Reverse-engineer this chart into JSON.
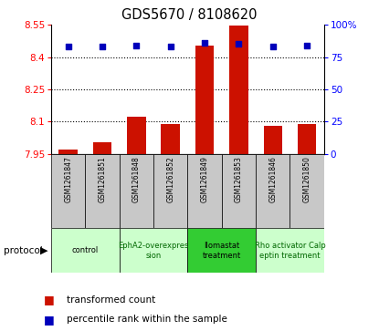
{
  "title": "GDS5670 / 8108620",
  "samples": [
    "GSM1261847",
    "GSM1261851",
    "GSM1261848",
    "GSM1261852",
    "GSM1261849",
    "GSM1261853",
    "GSM1261846",
    "GSM1261850"
  ],
  "transformed_count": [
    7.972,
    8.005,
    8.125,
    8.088,
    8.455,
    8.545,
    8.082,
    8.088
  ],
  "percentile_rank": [
    83,
    83,
    84,
    83,
    86,
    85,
    83,
    84
  ],
  "ylim_left": [
    7.95,
    8.55
  ],
  "ylim_right": [
    0,
    100
  ],
  "yticks_left": [
    7.95,
    8.1,
    8.25,
    8.4,
    8.55
  ],
  "ytick_labels_left": [
    "7.95",
    "8.1",
    "8.25",
    "8.4",
    "8.55"
  ],
  "yticks_right": [
    0,
    25,
    50,
    75,
    100
  ],
  "ytick_labels_right": [
    "0",
    "25",
    "50",
    "75",
    "100%"
  ],
  "bar_color": "#cc1100",
  "dot_color": "#0000bb",
  "bar_bottom": 7.95,
  "protocols": [
    {
      "label": "control",
      "start": 0,
      "end": 2,
      "color": "#ccffcc",
      "text_color": "#000000"
    },
    {
      "label": "EphA2-overexpres\nsion",
      "start": 2,
      "end": 4,
      "color": "#ccffcc",
      "text_color": "#006600"
    },
    {
      "label": "Ilomastat\ntreatment",
      "start": 4,
      "end": 6,
      "color": "#33cc33",
      "text_color": "#000000"
    },
    {
      "label": "Rho activator Calp\neptin treatment",
      "start": 6,
      "end": 8,
      "color": "#ccffcc",
      "text_color": "#006600"
    }
  ],
  "legend_bar_label": "transformed count",
  "legend_dot_label": "percentile rank within the sample",
  "xlabel_protocol": "protocol",
  "sample_bg_color": "#c8c8c8"
}
